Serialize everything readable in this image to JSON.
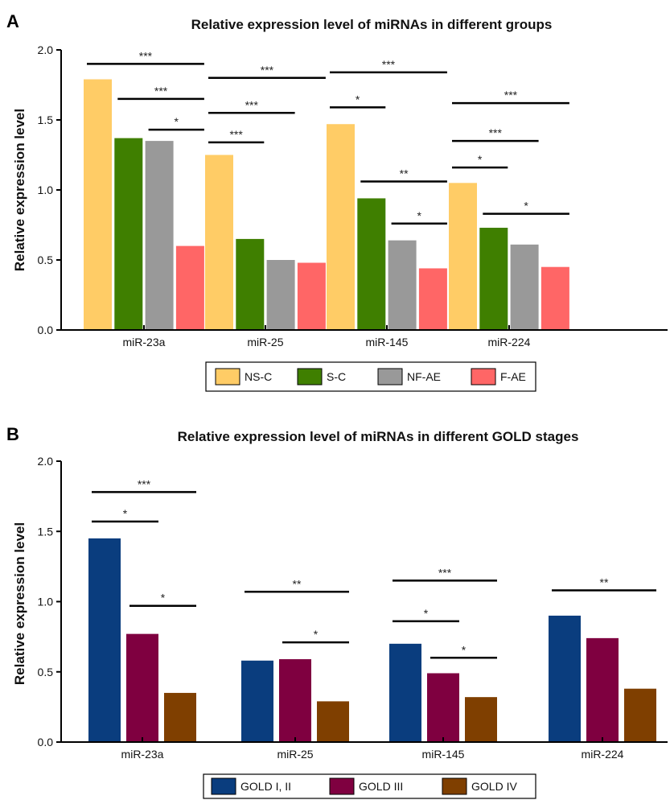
{
  "chart_data": [
    {
      "panel": "A",
      "type": "bar",
      "title": "Relative expression level of miRNAs in different groups",
      "xlabel": "",
      "ylabel": "Relative expression level",
      "ylim": [
        0,
        2.0
      ],
      "yticks": [
        "0.0",
        "0.5",
        "1.0",
        "1.5",
        "2.0"
      ],
      "grid": false,
      "legend_position": "bottom",
      "categories": [
        "miR-23a",
        "miR-25",
        "miR-145",
        "miR-224"
      ],
      "series": [
        {
          "name": "NS-C",
          "color": "#FFCC66",
          "values": [
            1.79,
            1.25,
            1.47,
            1.05
          ]
        },
        {
          "name": "S-C",
          "color": "#3F7F00",
          "values": [
            1.37,
            0.65,
            0.94,
            0.73
          ]
        },
        {
          "name": "NF-AE",
          "color": "#999999",
          "values": [
            1.35,
            0.5,
            0.64,
            0.61
          ]
        },
        {
          "name": "F-AE",
          "color": "#FF6666",
          "values": [
            0.6,
            0.48,
            0.44,
            0.45
          ]
        }
      ],
      "significance": [
        {
          "category": 0,
          "from": 0,
          "to": 3,
          "y": 1.9,
          "label": "***"
        },
        {
          "category": 0,
          "from": 1,
          "to": 3,
          "y": 1.65,
          "label": "***"
        },
        {
          "category": 0,
          "from": 2,
          "to": 3,
          "y": 1.43,
          "label": "*"
        },
        {
          "category": 1,
          "from": 0,
          "to": 3,
          "y": 1.8,
          "label": "***"
        },
        {
          "category": 1,
          "from": 0,
          "to": 2,
          "y": 1.55,
          "label": "***"
        },
        {
          "category": 1,
          "from": 0,
          "to": 1,
          "y": 1.34,
          "label": "***"
        },
        {
          "category": 2,
          "from": 0,
          "to": 3,
          "y": 1.84,
          "label": "***"
        },
        {
          "category": 2,
          "from": 0,
          "to": 1,
          "y": 1.59,
          "label": "*"
        },
        {
          "category": 2,
          "from": 1,
          "to": 3,
          "y": 1.06,
          "label": "**"
        },
        {
          "category": 2,
          "from": 2,
          "to": 3,
          "y": 0.76,
          "label": "*"
        },
        {
          "category": 3,
          "from": 0,
          "to": 3,
          "y": 1.62,
          "label": "***"
        },
        {
          "category": 3,
          "from": 0,
          "to": 2,
          "y": 1.35,
          "label": "***"
        },
        {
          "category": 3,
          "from": 0,
          "to": 1,
          "y": 1.16,
          "label": "*"
        },
        {
          "category": 3,
          "from": 1,
          "to": 3,
          "y": 0.83,
          "label": "*"
        }
      ]
    },
    {
      "panel": "B",
      "type": "bar",
      "title": "Relative expression level of miRNAs in different GOLD stages",
      "xlabel": "",
      "ylabel": "Relative expression level",
      "ylim": [
        0,
        2.0
      ],
      "yticks": [
        "0.0",
        "0.5",
        "1.0",
        "1.5",
        "2.0"
      ],
      "grid": false,
      "legend_position": "bottom",
      "categories": [
        "miR-23a",
        "miR-25",
        "miR-145",
        "miR-224"
      ],
      "series": [
        {
          "name": "GOLD I, II",
          "color": "#0A3D7E",
          "values": [
            1.45,
            0.58,
            0.7,
            0.9
          ]
        },
        {
          "name": "GOLD III",
          "color": "#7F0040",
          "values": [
            0.77,
            0.59,
            0.49,
            0.74
          ]
        },
        {
          "name": "GOLD IV",
          "color": "#7F3F00",
          "values": [
            0.35,
            0.29,
            0.32,
            0.38
          ]
        }
      ],
      "significance": [
        {
          "category": 0,
          "from": 0,
          "to": 2,
          "y": 1.78,
          "label": "***"
        },
        {
          "category": 0,
          "from": 0,
          "to": 1,
          "y": 1.57,
          "label": "*"
        },
        {
          "category": 0,
          "from": 1,
          "to": 2,
          "y": 0.97,
          "label": "*"
        },
        {
          "category": 1,
          "from": 0,
          "to": 2,
          "y": 1.07,
          "label": "**"
        },
        {
          "category": 1,
          "from": 1,
          "to": 2,
          "y": 0.71,
          "label": "*"
        },
        {
          "category": 2,
          "from": 0,
          "to": 2,
          "y": 1.15,
          "label": "***"
        },
        {
          "category": 2,
          "from": 0,
          "to": 1,
          "y": 0.86,
          "label": "*"
        },
        {
          "category": 2,
          "from": 1,
          "to": 2,
          "y": 0.6,
          "label": "*"
        },
        {
          "category": 3,
          "from": 0,
          "to": 2,
          "y": 1.08,
          "label": "**"
        }
      ]
    }
  ]
}
